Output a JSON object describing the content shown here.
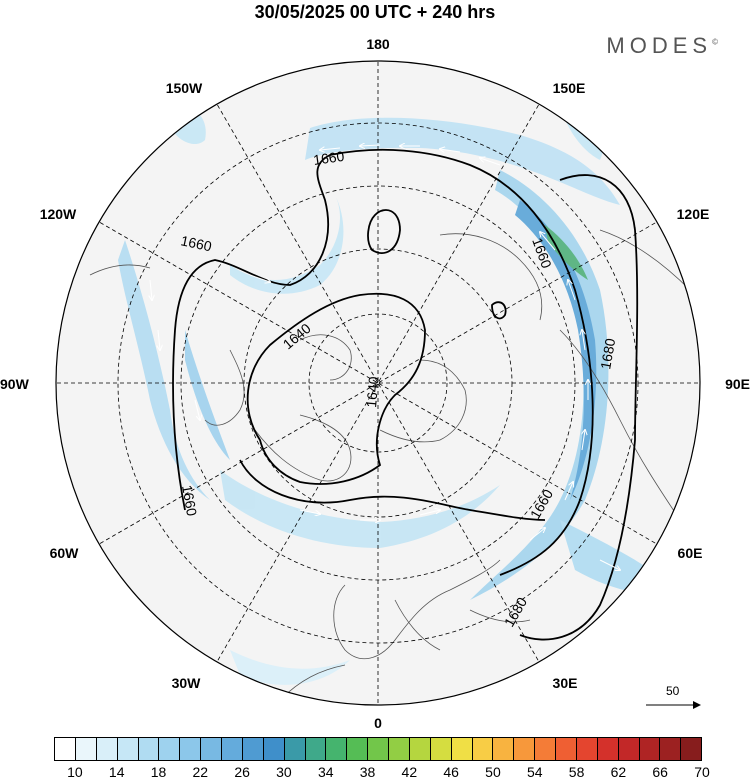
{
  "title": "30/05/2025  00 UTC  + 240 hrs",
  "brand": "MODES",
  "brand_mark": "©",
  "longitude_labels": {
    "top": "180",
    "bottom": "0",
    "left": "90W",
    "right": "90E",
    "upper_left_far": "150W",
    "upper_left_near": "120W",
    "upper_right_far": "150E",
    "upper_right_near": "120E",
    "lower_left_near": "60W",
    "lower_left_far": "30W",
    "lower_right_near": "60E",
    "lower_right_far": "30E"
  },
  "contour_labels": {
    "c1660_top": "1660",
    "c1660_left": "1660",
    "c1660_lowleft": "1660",
    "c1640_a": "1640",
    "c1640_b": "1640",
    "c1660_right": "1660",
    "c1660_jet": "1660",
    "c1680_right": "1680",
    "c1680_bottom": "1680"
  },
  "reference_vector": {
    "label": "50"
  },
  "colorbar": {
    "colors": [
      "#ffffff",
      "#eaf6fb",
      "#d9eff9",
      "#c6e7f6",
      "#b0dcf2",
      "#9ed2ee",
      "#8cc7ea",
      "#78b9e3",
      "#64abdc",
      "#4f9bd2",
      "#3f8fca",
      "#3a9aa8",
      "#3fa98a",
      "#45b46e",
      "#55bd55",
      "#72c64a",
      "#92ce44",
      "#b5d63f",
      "#d5dd40",
      "#f0df45",
      "#f8cd45",
      "#f8b340",
      "#f7983b",
      "#f47c37",
      "#ef5f33",
      "#e4452f",
      "#d4312b",
      "#c22828",
      "#af2424",
      "#9c2121",
      "#871d1d"
    ],
    "labels": [
      "10",
      "14",
      "18",
      "22",
      "26",
      "30",
      "34",
      "38",
      "42",
      "46",
      "50",
      "54",
      "58",
      "62",
      "66",
      "70"
    ]
  }
}
